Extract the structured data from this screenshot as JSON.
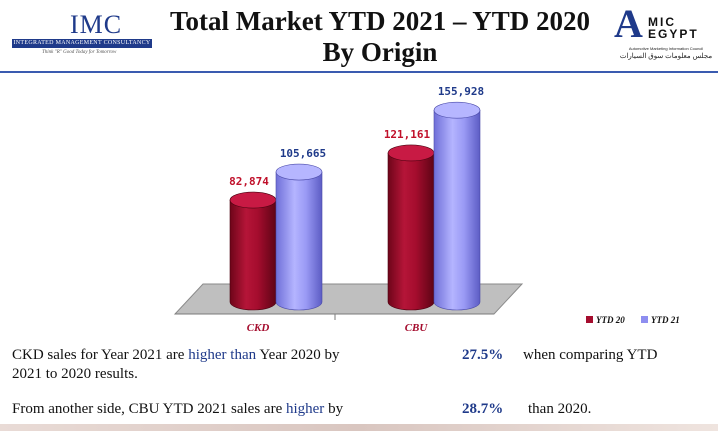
{
  "header": {
    "title": "Total Market YTD 2021 – YTD 2020 By Origin",
    "imc_logo_text": "IMC",
    "imc_logo_tagline": "INTEGRATED MANAGEMENT CONSULTANCY",
    "imc_logo_motto": "Think \"R\" Good Today for Tomorrow",
    "amic_logo_a": "A",
    "amic_logo_word_1": "MIC",
    "amic_logo_word_2": "EGYPT",
    "amic_logo_subtitle": "Automotive Marketing Information Council",
    "amic_logo_arabic": "مجلس معلومات سوق السيارات"
  },
  "chart_data": {
    "type": "bar",
    "style": "3d-cylinder",
    "categories": [
      "CKD",
      "CBU"
    ],
    "series": [
      {
        "name": "YTD 20",
        "values": [
          82874,
          121161
        ],
        "labels": [
          "82,874",
          "121,161"
        ],
        "color": "#a50d2e",
        "label_color": "#c0102a"
      },
      {
        "name": "YTD 21",
        "values": [
          105665,
          155928
        ],
        "labels": [
          "105,665",
          "155,928"
        ],
        "color": "#8e8ef0",
        "label_color": "#1f3a8a"
      }
    ],
    "title": "Total Market YTD 2021 – YTD 2020 By Origin",
    "xlabel": "",
    "ylabel": "",
    "ylim": [
      0,
      160000
    ],
    "grid": false,
    "legend": "bottom-right"
  },
  "notes": {
    "ckd_line": {
      "text_before": "CKD sales for Year 2021 are",
      "highlight": "higher than",
      "text_after": "Year 2020 by",
      "value": "27.5%",
      "text_end": "when comparing YTD",
      "continuation": "2021 to 2020 results."
    },
    "cbu_line": {
      "text_before": "From another side, CBU YTD 2021 sales are",
      "highlight": "higher",
      "text_after": "by",
      "value": "28.7%",
      "text_end": "than 2020."
    }
  }
}
